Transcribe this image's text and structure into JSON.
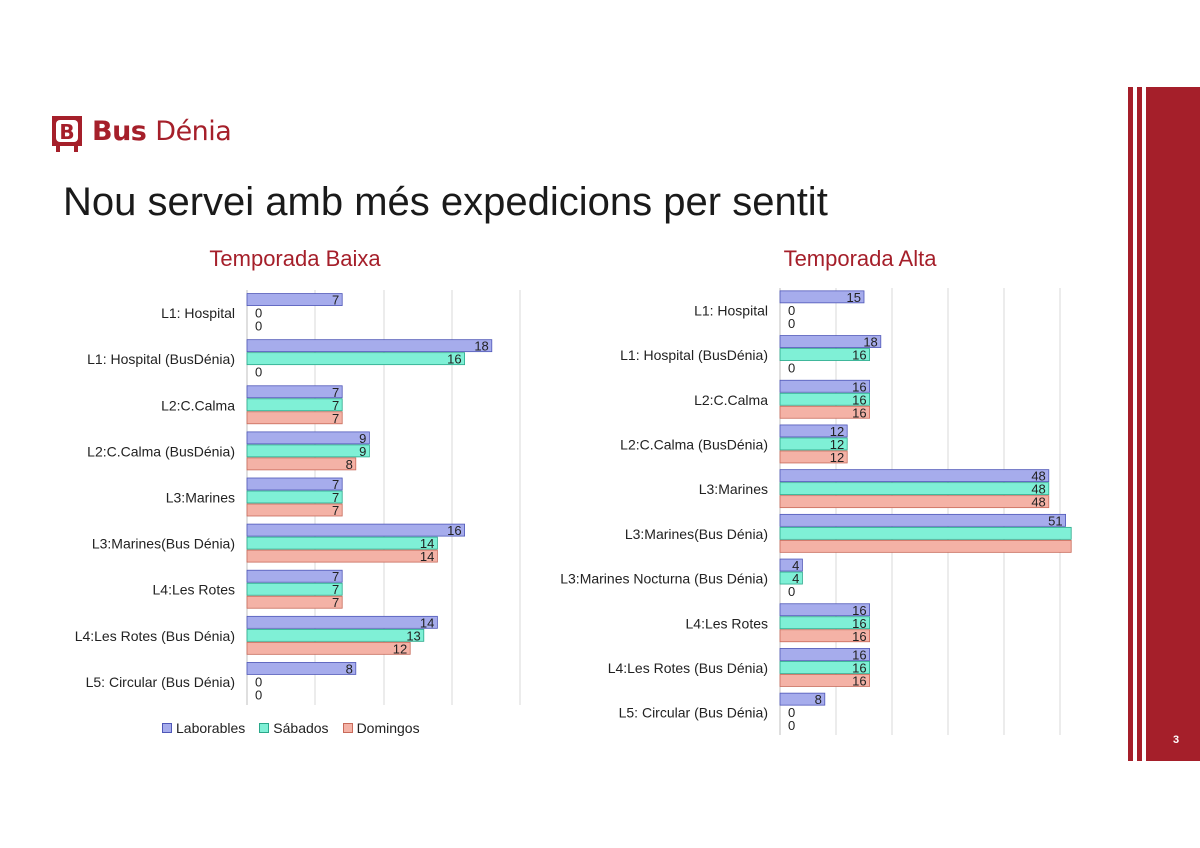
{
  "brand": {
    "name_bold": "Bus",
    "name_light": "Dénia",
    "color": "#a51f2a"
  },
  "slide": {
    "title": "Nou servei amb més expedicions per sentit",
    "page_number": "3"
  },
  "colors": {
    "laborables": "#a6acec",
    "sabados": "#7ff0d6",
    "domingos": "#f4b2a6",
    "accent": "#a51f2a"
  },
  "chart_data": [
    {
      "type": "bar",
      "orientation": "horizontal",
      "title": "Temporada Baixa",
      "categories": [
        "L1: Hospital",
        "L1: Hospital (BusDénia)",
        "L2:C.Calma",
        "L2:C.Calma (BusDénia)",
        "L3:Marines",
        "L3:Marines(Bus Dénia)",
        "L4:Les Rotes",
        "L4:Les Rotes (Bus Dénia)",
        "L5: Circular (Bus Dénia)"
      ],
      "series": [
        {
          "name": "Laborables",
          "values": [
            7,
            18,
            7,
            9,
            7,
            16,
            7,
            14,
            8
          ]
        },
        {
          "name": "Sábados",
          "values": [
            0,
            16,
            7,
            9,
            7,
            14,
            7,
            13,
            0
          ]
        },
        {
          "name": "Domingos",
          "values": [
            0,
            0,
            7,
            8,
            7,
            14,
            7,
            12,
            0
          ]
        }
      ],
      "xlim": [
        0,
        20
      ],
      "grid": true,
      "legend": "bottom"
    },
    {
      "type": "bar",
      "orientation": "horizontal",
      "title": "Temporada Alta",
      "categories": [
        "L1: Hospital",
        "L1: Hospital (BusDénia)",
        "L2:C.Calma",
        "L2:C.Calma (BusDénia)",
        "L3:Marines",
        "L3:Marines(Bus Dénia)",
        "L3:Marines Nocturna (Bus Dénia)",
        "L4:Les Rotes",
        "L4:Les Rotes (Bus Dénia)",
        "L5: Circular (Bus Dénia)"
      ],
      "series": [
        {
          "name": "Laborables",
          "values": [
            15,
            18,
            16,
            12,
            48,
            51,
            4,
            16,
            16,
            8
          ]
        },
        {
          "name": "Sábados",
          "values": [
            0,
            16,
            16,
            12,
            48,
            52,
            4,
            16,
            16,
            0
          ]
        },
        {
          "name": "Domingos",
          "values": [
            0,
            0,
            16,
            12,
            48,
            52,
            0,
            16,
            16,
            0
          ]
        }
      ],
      "hidden_labels": [
        [
          5,
          1
        ],
        [
          5,
          2
        ]
      ],
      "xlim": [
        0,
        50
      ],
      "grid": true,
      "legend": "none"
    }
  ]
}
